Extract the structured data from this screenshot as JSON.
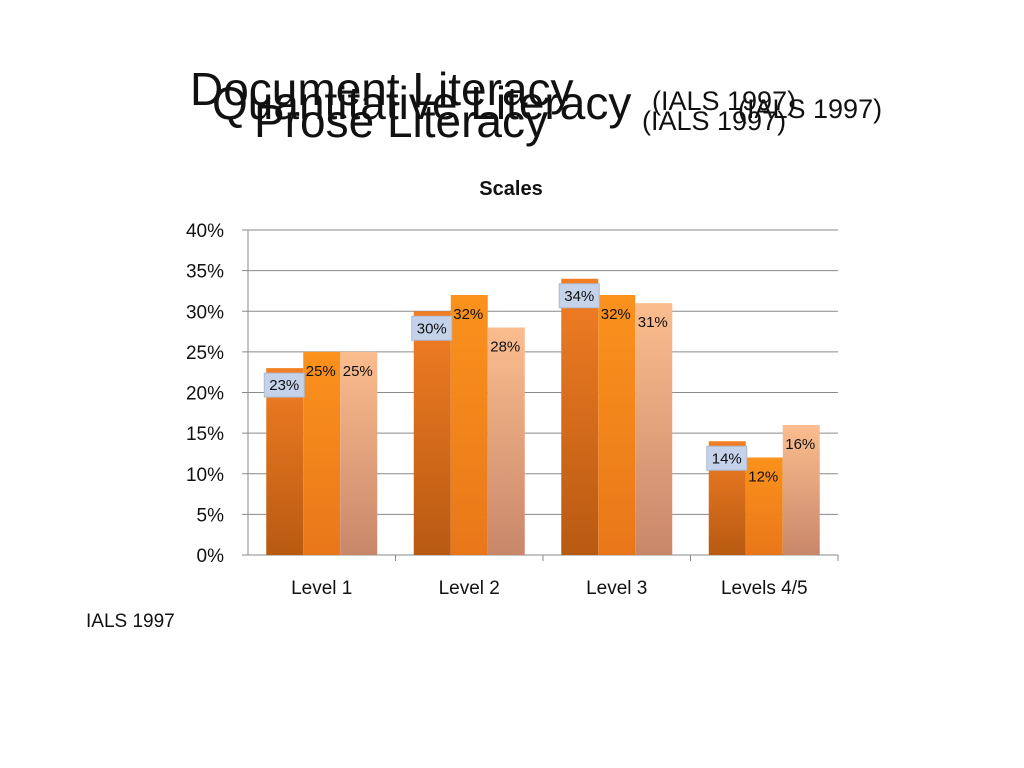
{
  "slide": {
    "titles": [
      {
        "main": "Document Literacy",
        "sub": "(IALS 1997)"
      },
      {
        "main": "Quantitative Literacy",
        "sub": "(IALS 1997)"
      },
      {
        "main": "Prose  Literacy",
        "sub": "(IALS 1997)"
      }
    ],
    "footer": "IALS 1997"
  },
  "colors": {
    "series1": "#ee7a22",
    "series2": "#f7931e",
    "series3": "#f9b98a",
    "label_box": "#c4d2ea",
    "grid": "#8a8a8a"
  },
  "chart_data": {
    "type": "bar",
    "title": "Scales",
    "xlabel": "",
    "ylabel": "",
    "categories": [
      "Level 1",
      "Level 2",
      "Level 3",
      "Levels 4/5"
    ],
    "series": [
      {
        "values": [
          23,
          30,
          34,
          14
        ]
      },
      {
        "values": [
          25,
          32,
          32,
          12
        ]
      },
      {
        "values": [
          25,
          28,
          31,
          16
        ]
      }
    ],
    "ylim": [
      0,
      40
    ],
    "yticks": [
      0,
      5,
      10,
      15,
      20,
      25,
      30,
      35,
      40
    ],
    "ytick_labels": [
      "0%",
      "5%",
      "10%",
      "15%",
      "20%",
      "25%",
      "30%",
      "35%",
      "40%"
    ],
    "data_labels": [
      [
        "23%",
        "30%",
        "34%",
        "14%"
      ],
      [
        "25%",
        "32%",
        "32%",
        "12%"
      ],
      [
        "25%",
        "28%",
        "31%",
        "16%"
      ]
    ],
    "grid": true,
    "legend": "none"
  }
}
